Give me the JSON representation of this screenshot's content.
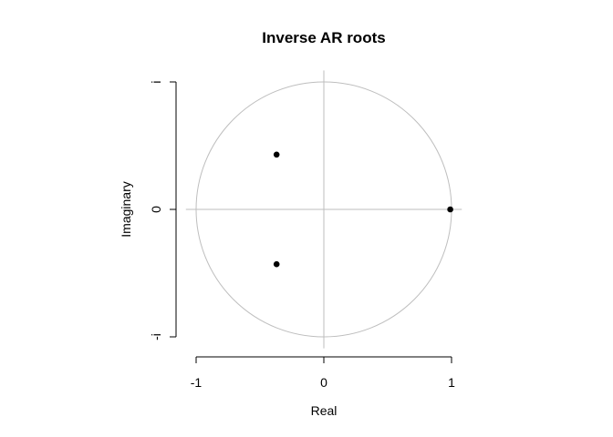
{
  "chart_data": {
    "type": "scatter",
    "title": "Inverse AR roots",
    "xlabel": "Real",
    "ylabel": "Imaginary",
    "xlim": [
      -1,
      1
    ],
    "ylim": [
      -1,
      1
    ],
    "x_ticks": [
      {
        "value": -1,
        "label": "-1"
      },
      {
        "value": 0,
        "label": "0"
      },
      {
        "value": 1,
        "label": "1"
      }
    ],
    "y_ticks": [
      {
        "value": -1,
        "label": "-i"
      },
      {
        "value": 0,
        "label": "0"
      },
      {
        "value": 1,
        "label": "i"
      }
    ],
    "unit_circle": true,
    "reference_lines": [
      0
    ],
    "points": [
      {
        "x": -0.37,
        "y": 0.43
      },
      {
        "x": -0.37,
        "y": -0.43
      },
      {
        "x": 0.99,
        "y": 0.0
      }
    ],
    "colors": {
      "points": "#000000",
      "circle": "#bebebe",
      "axes": "#000000"
    }
  }
}
